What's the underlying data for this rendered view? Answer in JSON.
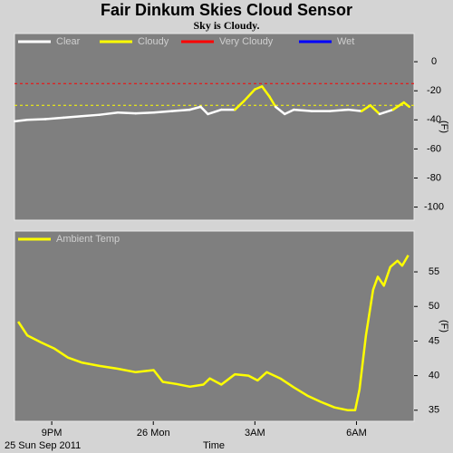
{
  "chart_data": [
    {
      "type": "line",
      "title": "Fair Dinkum Skies Cloud Sensor",
      "subtitle": "Sky is Cloudy.",
      "ylabel": "(F)",
      "series": [
        {
          "name": "Clear",
          "color": "#ffffff"
        },
        {
          "name": "Cloudy",
          "color": "#ffff00",
          "threshold": -30
        },
        {
          "name": "Very Cloudy",
          "color": "#ff0000",
          "threshold": -15
        },
        {
          "name": "Wet",
          "color": "#0000ff"
        }
      ],
      "x": [
        19.91,
        20.28,
        20.81,
        21.35,
        21.88,
        22.41,
        22.95,
        23.48,
        24.01,
        24.55,
        25.08,
        25.4,
        25.61,
        26.01,
        26.41,
        26.68,
        27.0,
        27.21,
        27.43,
        27.61,
        27.88,
        28.15,
        28.68,
        29.21,
        29.75,
        30.15,
        30.41,
        30.68,
        31.08,
        31.4,
        31.56
      ],
      "values": [
        -41,
        -40,
        -39.5,
        -38.5,
        -37.5,
        -36.5,
        -35,
        -35.5,
        -35,
        -34,
        -33,
        -31,
        -36,
        -33,
        -33,
        -27,
        -19,
        -17,
        -24,
        -31,
        -36,
        -33,
        -34,
        -34,
        -33,
        -34,
        -30,
        -36,
        -33,
        -28,
        -31
      ],
      "xlim": [
        19.9,
        31.7
      ],
      "ylim": [
        -109,
        19.4
      ],
      "yticks": [
        0,
        -20,
        -40,
        -60,
        -80,
        -100
      ]
    },
    {
      "type": "line",
      "xlabel": "Time",
      "date": "25 Sun Sep 2011",
      "ylabel": "(F)",
      "series": [
        {
          "name": "Ambient Temp",
          "color": "#ffff00",
          "values": [
            47.8,
            45.8,
            44.8,
            43.9,
            42.6,
            41.9,
            41.4,
            41.0,
            40.5,
            40.8,
            39.1,
            38.8,
            38.4,
            38.7,
            39.6,
            38.7,
            40.2,
            40.0,
            39.3,
            40.5,
            39.6,
            38.3,
            37.1,
            36.2,
            35.4,
            35.0,
            35.0,
            38.0,
            45.8,
            52.4,
            54.3,
            53.0,
            55.7,
            56.6,
            55.9,
            57.4
          ]
        }
      ],
      "x": [
        20.01,
        20.28,
        20.68,
        21.08,
        21.48,
        21.88,
        22.41,
        22.95,
        23.48,
        24.01,
        24.28,
        24.68,
        25.08,
        25.48,
        25.67,
        26.01,
        26.41,
        26.81,
        27.08,
        27.35,
        27.75,
        28.15,
        28.55,
        28.95,
        29.35,
        29.75,
        29.96,
        30.09,
        30.28,
        30.49,
        30.63,
        30.81,
        31.0,
        31.21,
        31.35,
        31.53
      ],
      "xlim": [
        19.9,
        31.7
      ],
      "ylim": [
        33.4,
        60.9
      ],
      "yticks": [
        35,
        40,
        45,
        50,
        55
      ],
      "xticks": [
        {
          "value": 21,
          "label": "9PM"
        },
        {
          "value": 24,
          "label": "26 Mon"
        },
        {
          "value": 27,
          "label": "3AM"
        },
        {
          "value": 30,
          "label": "6AM"
        }
      ]
    }
  ]
}
